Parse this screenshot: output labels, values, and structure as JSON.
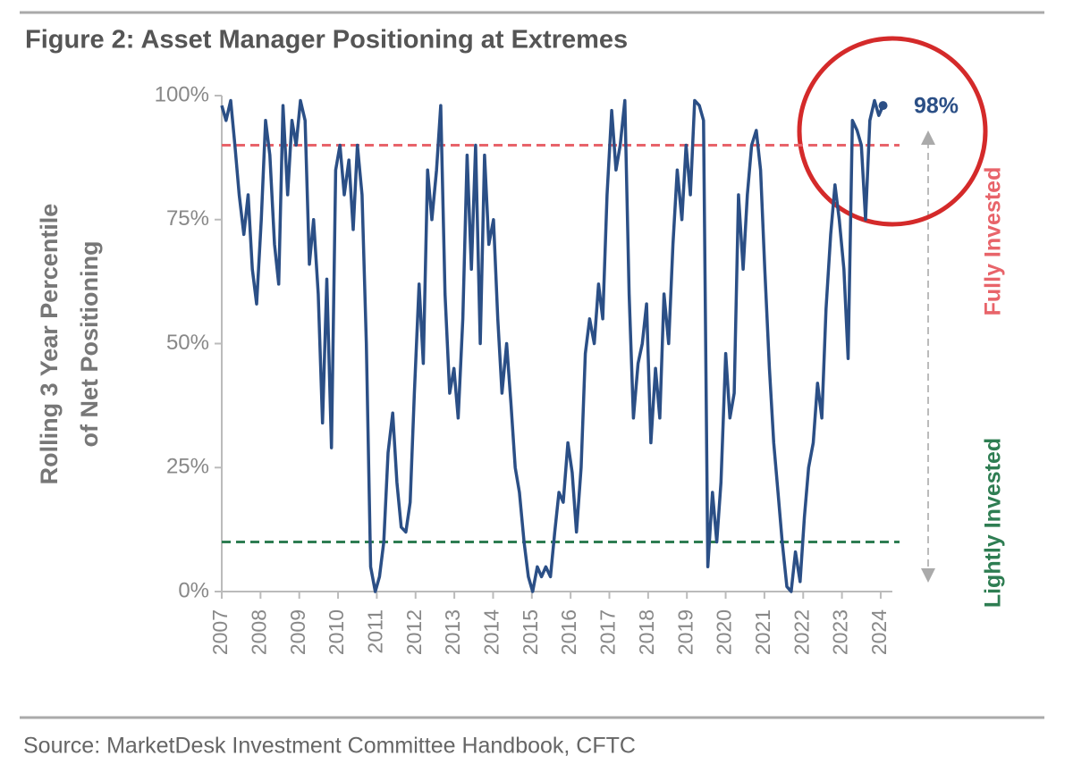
{
  "chart_data": {
    "type": "line",
    "title": "Figure 2: Asset Manager Positioning at Extremes",
    "ylabel": [
      "Rolling 3 Year Percentile",
      "of Net Positioning"
    ],
    "source": "Source: MarketDesk Investment Committee Handbook, CFTC",
    "annotation": "98%",
    "xlim": [
      2007,
      2024.3
    ],
    "ylim": [
      0,
      100
    ],
    "xticks": [
      2007,
      2008,
      2009,
      2010,
      2011,
      2012,
      2013,
      2014,
      2015,
      2016,
      2017,
      2018,
      2019,
      2020,
      2021,
      2022,
      2023,
      2024
    ],
    "yticks": [
      {
        "value": 0,
        "label": "0%"
      },
      {
        "value": 25,
        "label": "25%"
      },
      {
        "value": 50,
        "label": "50%"
      },
      {
        "value": 75,
        "label": "75%"
      },
      {
        "value": 100,
        "label": "100%"
      }
    ],
    "reference_lines": [
      {
        "value": 90,
        "label": "Fully Invested",
        "color": "#e8646a"
      },
      {
        "value": 10,
        "label": "Lightly Invested",
        "color": "#2e7d52"
      }
    ],
    "series": [
      {
        "name": "Asset Manager Positioning",
        "color": "#2b4f86",
        "x": [
          2007.0,
          2007.11,
          2007.23,
          2007.34,
          2007.45,
          2007.57,
          2007.68,
          2007.79,
          2007.9,
          2008.02,
          2008.13,
          2008.24,
          2008.36,
          2008.47,
          2008.58,
          2008.7,
          2008.81,
          2008.92,
          2009.03,
          2009.15,
          2009.26,
          2009.37,
          2009.49,
          2009.6,
          2009.71,
          2009.83,
          2009.94,
          2010.05,
          2010.16,
          2010.28,
          2010.39,
          2010.5,
          2010.62,
          2010.73,
          2010.84,
          2010.96,
          2011.07,
          2011.18,
          2011.29,
          2011.41,
          2011.52,
          2011.63,
          2011.75,
          2011.86,
          2011.97,
          2012.09,
          2012.2,
          2012.31,
          2012.42,
          2012.54,
          2012.65,
          2012.76,
          2012.88,
          2012.99,
          2013.1,
          2013.22,
          2013.33,
          2013.44,
          2013.55,
          2013.67,
          2013.78,
          2013.89,
          2014.01,
          2014.12,
          2014.23,
          2014.35,
          2014.46,
          2014.57,
          2014.68,
          2014.8,
          2014.91,
          2015.02,
          2015.14,
          2015.25,
          2015.36,
          2015.48,
          2015.59,
          2015.7,
          2015.81,
          2015.93,
          2016.04,
          2016.15,
          2016.27,
          2016.38,
          2016.49,
          2016.61,
          2016.72,
          2016.83,
          2016.94,
          2017.06,
          2017.17,
          2017.28,
          2017.4,
          2017.51,
          2017.62,
          2017.74,
          2017.85,
          2017.96,
          2018.07,
          2018.19,
          2018.3,
          2018.41,
          2018.53,
          2018.64,
          2018.75,
          2018.87,
          2018.98,
          2019.09,
          2019.2,
          2019.32,
          2019.43,
          2019.54,
          2019.66,
          2019.77,
          2019.88,
          2020.0,
          2020.11,
          2020.22,
          2020.33,
          2020.45,
          2020.56,
          2020.67,
          2020.79,
          2020.9,
          2021.01,
          2021.13,
          2021.24,
          2021.35,
          2021.46,
          2021.58,
          2021.69,
          2021.8,
          2021.92,
          2022.03,
          2022.14,
          2022.26,
          2022.37,
          2022.48,
          2022.59,
          2022.71,
          2022.82,
          2022.93,
          2023.05,
          2023.16,
          2023.27,
          2023.39,
          2023.5,
          2023.61,
          2023.72,
          2023.84,
          2023.95,
          2024.06
        ],
        "values": [
          98,
          95,
          99,
          90,
          80,
          72,
          80,
          65,
          58,
          75,
          95,
          88,
          70,
          62,
          98,
          80,
          95,
          90,
          99,
          95,
          66,
          75,
          60,
          34,
          63,
          29,
          85,
          90,
          80,
          87,
          73,
          90,
          80,
          50,
          5,
          0,
          3,
          10,
          28,
          36,
          22,
          13,
          12,
          18,
          40,
          62,
          46,
          85,
          75,
          85,
          98,
          60,
          40,
          45,
          35,
          55,
          88,
          65,
          90,
          50,
          88,
          70,
          75,
          55,
          40,
          50,
          38,
          25,
          20,
          10,
          3,
          0,
          5,
          3,
          5,
          3,
          12,
          20,
          18,
          30,
          24,
          12,
          25,
          48,
          55,
          50,
          62,
          55,
          80,
          97,
          85,
          90,
          99,
          60,
          35,
          46,
          50,
          58,
          30,
          45,
          35,
          60,
          50,
          70,
          85,
          75,
          90,
          80,
          99,
          98,
          95,
          5,
          20,
          10,
          22,
          48,
          35,
          40,
          80,
          65,
          80,
          90,
          93,
          85,
          65,
          45,
          30,
          20,
          10,
          1,
          0,
          8,
          2,
          15,
          25,
          30,
          42,
          35,
          57,
          72,
          82,
          75,
          65,
          47,
          95,
          93,
          90,
          75,
          95,
          99,
          96,
          98
        ]
      }
    ]
  }
}
